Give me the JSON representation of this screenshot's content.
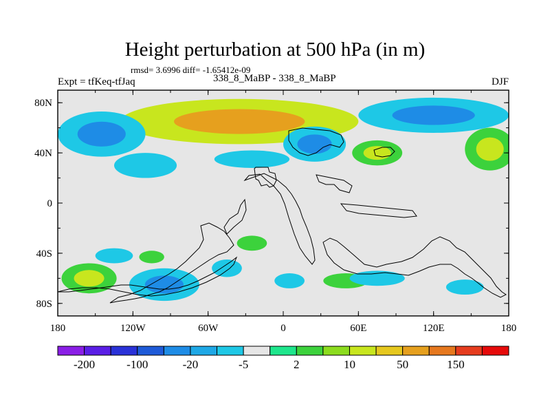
{
  "title": "Height perturbation at 500 hPa (in m)",
  "stats": "rmsd= 3.6996 diff= -1.65412e-09",
  "left_label": "Expt = tfKeq-tfJaq",
  "center_label": "338_8_MaBP - 338_8_MaBP",
  "right_label": "DJF",
  "chart_data": {
    "type": "heatmap",
    "title": "Height perturbation at 500 hPa (in m)",
    "xlabel": "",
    "ylabel": "",
    "xlim": [
      -180,
      180
    ],
    "ylim": [
      -90,
      90
    ],
    "xticks": [
      {
        "value": -180,
        "label": "180"
      },
      {
        "value": -120,
        "label": "120W"
      },
      {
        "value": -60,
        "label": "60W"
      },
      {
        "value": 0,
        "label": "0"
      },
      {
        "value": 60,
        "label": "60E"
      },
      {
        "value": 120,
        "label": "120E"
      },
      {
        "value": 180,
        "label": "180"
      }
    ],
    "yticks": [
      {
        "value": 80,
        "label": "80N"
      },
      {
        "value": 40,
        "label": "40N"
      },
      {
        "value": 0,
        "label": "0"
      },
      {
        "value": -40,
        "label": "40S"
      },
      {
        "value": -80,
        "label": "80S"
      }
    ],
    "colorbar": {
      "colors": [
        "#8a1ee6",
        "#5a1ee6",
        "#2a32d8",
        "#1e5ad8",
        "#1e8ce6",
        "#1ea8e6",
        "#1ec8e6",
        "#e6e6e6",
        "#1ee68c",
        "#3cd23c",
        "#8cdc1e",
        "#c8e61e",
        "#e6c81e",
        "#e6a01e",
        "#e6781e",
        "#e63c1e",
        "#e60a0a"
      ],
      "labels": [
        {
          "after_index": 0,
          "text": "-200"
        },
        {
          "after_index": 2,
          "text": "-100"
        },
        {
          "after_index": 4,
          "text": "-20"
        },
        {
          "after_index": 6,
          "text": "-5"
        },
        {
          "after_index": 8,
          "text": "2"
        },
        {
          "after_index": 10,
          "text": "10"
        },
        {
          "after_index": 12,
          "text": "50"
        },
        {
          "after_index": 14,
          "text": "150"
        }
      ]
    },
    "features": [
      {
        "kind": "positive",
        "lon": -35,
        "lat": 65,
        "rx": 95,
        "ry": 18,
        "levels": [
          10,
          50
        ]
      },
      {
        "kind": "negative",
        "lon": -145,
        "lat": 55,
        "rx": 35,
        "ry": 18,
        "levels": [
          -5,
          -20
        ]
      },
      {
        "kind": "negative",
        "lon": 120,
        "lat": 70,
        "rx": 60,
        "ry": 14,
        "levels": [
          -5,
          -20
        ]
      },
      {
        "kind": "negative",
        "lon": 25,
        "lat": 47,
        "rx": 25,
        "ry": 14,
        "levels": [
          -5,
          -20
        ]
      },
      {
        "kind": "positive",
        "lon": 165,
        "lat": 43,
        "rx": 20,
        "ry": 17,
        "levels": [
          2,
          10
        ]
      },
      {
        "kind": "positive",
        "lon": 75,
        "lat": 40,
        "rx": 20,
        "ry": 10,
        "levels": [
          2,
          10
        ]
      },
      {
        "kind": "negative",
        "lon": -110,
        "lat": 30,
        "rx": 25,
        "ry": 10,
        "levels": [
          -5
        ]
      },
      {
        "kind": "negative",
        "lon": -25,
        "lat": 35,
        "rx": 30,
        "ry": 7,
        "levels": [
          -5
        ]
      },
      {
        "kind": "positive",
        "lon": -155,
        "lat": -60,
        "rx": 22,
        "ry": 12,
        "levels": [
          2,
          10
        ]
      },
      {
        "kind": "negative",
        "lon": -95,
        "lat": -65,
        "rx": 28,
        "ry": 13,
        "levels": [
          -5,
          -20
        ]
      },
      {
        "kind": "negative",
        "lon": -135,
        "lat": -42,
        "rx": 15,
        "ry": 6,
        "levels": [
          -5
        ]
      },
      {
        "kind": "positive",
        "lon": -105,
        "lat": -43,
        "rx": 10,
        "ry": 5,
        "levels": [
          2
        ]
      },
      {
        "kind": "positive",
        "lon": -25,
        "lat": -32,
        "rx": 12,
        "ry": 6,
        "levels": [
          2
        ]
      },
      {
        "kind": "positive",
        "lon": 50,
        "lat": -62,
        "rx": 18,
        "ry": 6,
        "levels": [
          2
        ]
      },
      {
        "kind": "negative",
        "lon": 75,
        "lat": -60,
        "rx": 22,
        "ry": 6,
        "levels": [
          -5
        ]
      },
      {
        "kind": "negative",
        "lon": 5,
        "lat": -62,
        "rx": 12,
        "ry": 6,
        "levels": [
          -5
        ]
      },
      {
        "kind": "negative",
        "lon": -45,
        "lat": -52,
        "rx": 12,
        "ry": 7,
        "levels": [
          -5
        ]
      },
      {
        "kind": "negative",
        "lon": 145,
        "lat": -67,
        "rx": 15,
        "ry": 6,
        "levels": [
          -5
        ]
      }
    ]
  }
}
